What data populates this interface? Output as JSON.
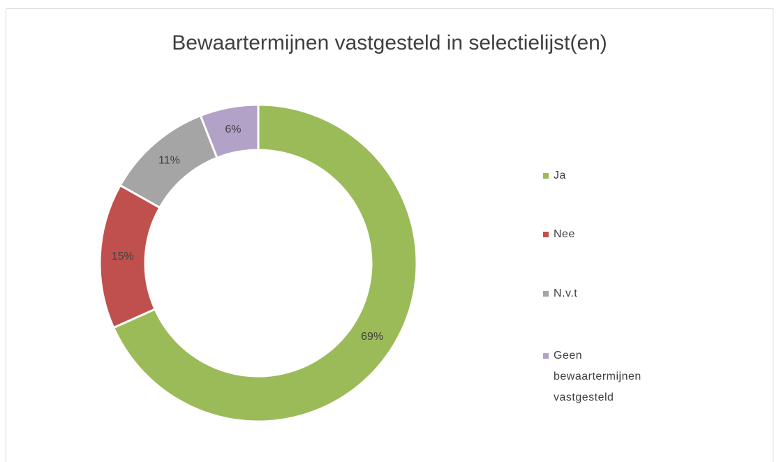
{
  "chart_data": {
    "type": "donut",
    "title": "Bewaartermijnen vastgesteld in selectielijst(en)",
    "categories": [
      "Ja",
      "Nee",
      "N.v.t",
      "Geen bewaartermijnen vastgesteld"
    ],
    "values": [
      69,
      15,
      11,
      6
    ],
    "value_labels": [
      "69%",
      "15%",
      "11%",
      "6%"
    ],
    "colors": [
      "#9bbb59",
      "#c0504d",
      "#a5a5a5",
      "#b3a2c7"
    ],
    "legend": "right"
  }
}
